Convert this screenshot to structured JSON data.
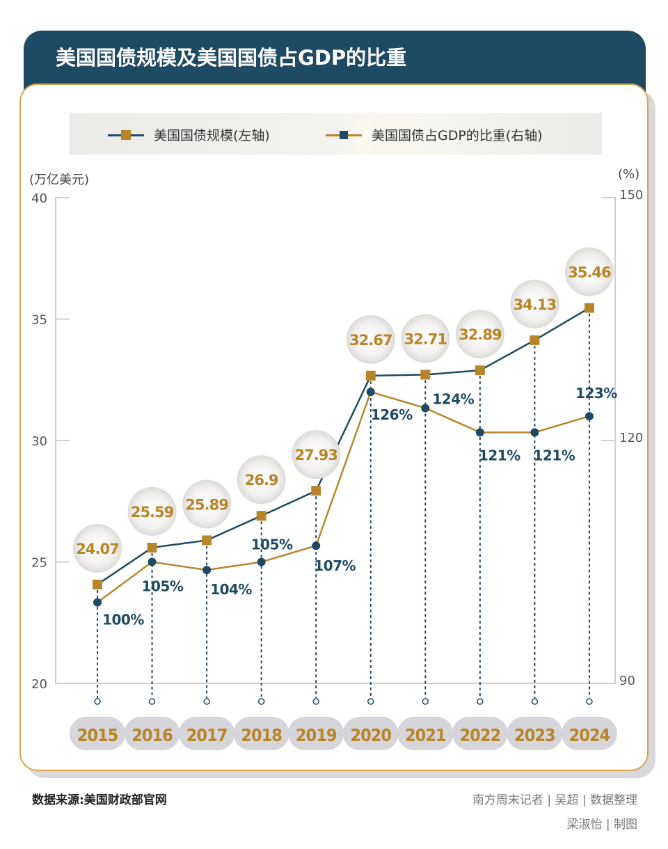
{
  "title": "美国国债规模及美国国债占GDP的比重",
  "colors": {
    "navy": "#1f4a63",
    "gold": "#b8862a",
    "border": "#d4a650"
  },
  "chart_data": {
    "type": "line",
    "title": "美国国债规模及美国国债占GDP的比重",
    "categories": [
      "2015",
      "2016",
      "2017",
      "2018",
      "2019",
      "2020",
      "2021",
      "2022",
      "2023",
      "2024"
    ],
    "series": [
      {
        "name": "美国国债规模(左轴)",
        "axis": "left",
        "line_color": "#1f4a63",
        "marker": "square",
        "marker_color": "#b8862a",
        "values": [
          24.07,
          25.59,
          25.89,
          26.9,
          27.93,
          32.67,
          32.71,
          32.89,
          34.13,
          35.46
        ],
        "labels": [
          "24.07",
          "25.59",
          "25.89",
          "26.9",
          "27.93",
          "32.67",
          "32.71",
          "32.89",
          "34.13",
          "35.46"
        ]
      },
      {
        "name": "美国国债占GDP的比重(右轴)",
        "axis": "right",
        "line_color": "#b8862a",
        "marker": "circle",
        "marker_color": "#1f4a63",
        "values": [
          100,
          105,
          104,
          105,
          107,
          126,
          124,
          121,
          121,
          123
        ],
        "labels": [
          "100%",
          "105%",
          "104%",
          "105%",
          "107%",
          "126%",
          "124%",
          "121%",
          "121%",
          "123%"
        ]
      }
    ],
    "left_axis": {
      "label": "(万亿美元)",
      "ylim": [
        20,
        40
      ],
      "ticks": [
        "20",
        "25",
        "30",
        "35",
        "40"
      ]
    },
    "right_axis": {
      "label": "(%)",
      "ylim": [
        90,
        150
      ],
      "ticks": [
        "90",
        "120",
        "150"
      ]
    },
    "legend_position": "top",
    "grid": false
  },
  "legend": {
    "item1": "美国国债规模(左轴)",
    "item2": "美国国债占GDP的比重(右轴)"
  },
  "footer": {
    "source": "数据来源:美国财政部官网",
    "credit1": "南方周末记者 | 吴超 | 数据整理",
    "credit2": "梁淑怡 | 制图"
  }
}
